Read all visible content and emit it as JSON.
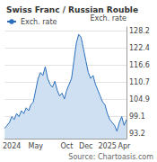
{
  "chart_data": {
    "type": "line",
    "title": "Swiss Franc / Russian Rouble",
    "y_label": "Exch. rate",
    "source": "Source: Chartoasis.com",
    "categories": [
      null,
      null,
      null,
      "2024",
      null,
      null,
      null,
      null,
      null,
      null,
      null,
      null,
      null,
      "May",
      null,
      null,
      null,
      null,
      null,
      null,
      null,
      null,
      null,
      null,
      null,
      null,
      "Oct",
      null,
      null,
      null,
      null,
      null,
      null,
      null,
      "Dec",
      null,
      null,
      null,
      null,
      null,
      null,
      null,
      null,
      "2025",
      null,
      null,
      null,
      null,
      null,
      null,
      "Apr",
      null
    ],
    "series": [
      {
        "name": "Exch. rate",
        "color": "#2a6ebb",
        "values": [
          95,
          96,
          97,
          99,
          98,
          100,
          99,
          101,
          100,
          102,
          101,
          103,
          104,
          108,
          112,
          114,
          113,
          116,
          112,
          110,
          109,
          111,
          108,
          106,
          107,
          105,
          108,
          110,
          112,
          118,
          124,
          127,
          126,
          122,
          118,
          114,
          112,
          113,
          110,
          108,
          106,
          104,
          103,
          100,
          98,
          97,
          96,
          94,
          97,
          99,
          96,
          98
        ]
      }
    ],
    "ylim": [
      91.5,
      129.5
    ],
    "yticks": [
      93.2,
      99.1,
      104.9,
      110.7,
      116.6,
      122.4,
      128.2
    ],
    "grid": true,
    "legend": "top-left"
  }
}
